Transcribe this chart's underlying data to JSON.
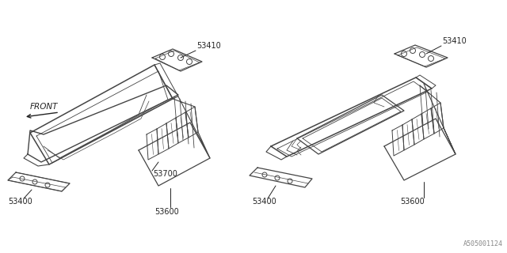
{
  "bg_color": "#ffffff",
  "line_color": "#444444",
  "text_color": "#222222",
  "fig_width": 6.4,
  "fig_height": 3.2,
  "dpi": 100
}
